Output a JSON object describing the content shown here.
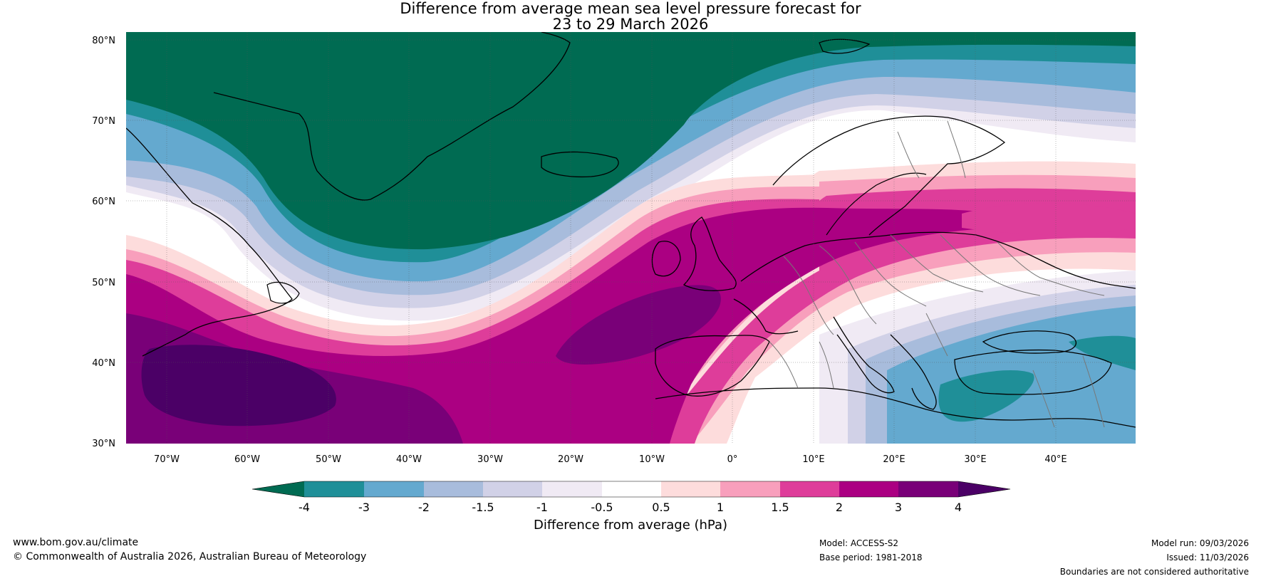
{
  "title": {
    "line1": "Difference from average mean sea level pressure forecast for",
    "line2": "23 to 29 March 2026"
  },
  "axes": {
    "lat_labels": [
      "80°N",
      "70°N",
      "60°N",
      "50°N",
      "40°N",
      "30°N"
    ],
    "lon_labels": [
      "70°W",
      "60°W",
      "50°W",
      "40°W",
      "30°W",
      "20°W",
      "10°W",
      "0°",
      "10°E",
      "20°E",
      "30°E",
      "40°E"
    ]
  },
  "colorbar": {
    "title": "Difference from average (hPa)",
    "ticks": [
      "-4",
      "-3",
      "-2",
      "-1.5",
      "-1",
      "-0.5",
      "0.5",
      "1",
      "1.5",
      "2",
      "3",
      "4"
    ],
    "colors": {
      "below_min": "#006b52",
      "c1": "#1f8f98",
      "c2": "#64a9cf",
      "c3": "#a8bcdc",
      "c4": "#d1d1e7",
      "c5": "#f0eaf4",
      "c6": "#ffffff",
      "c7": "#fddcdc",
      "c8": "#f89fbc",
      "c9": "#de3d9a",
      "c10": "#ab0082",
      "c11": "#790078",
      "above_max": "#4b0066"
    }
  },
  "footer": {
    "website": "www.bom.gov.au/climate",
    "copyright": "© Commonwealth of Australia 2026, Australian Bureau of Meteorology",
    "model": "Model: ACCESS-S2",
    "base_period": "Base period: 1981-2018",
    "model_run": "Model run: 09/03/2026",
    "issued": "Issued: 11/03/2026",
    "disclaimer": "Boundaries are not considered authoritative"
  }
}
